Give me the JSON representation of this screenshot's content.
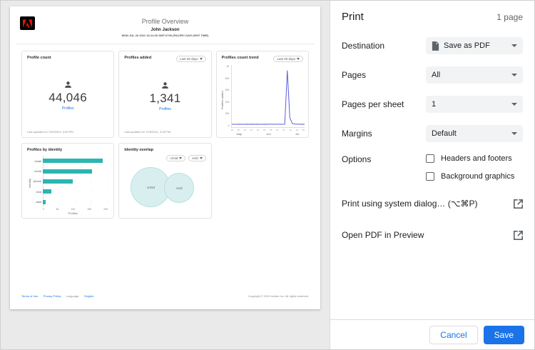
{
  "preview": {
    "header": {
      "title": "Profile Overview",
      "user": "John Jackson",
      "datetime": "MON JUL 26 2021 16:11:26 GMT-0700 (PACIFIC DAYLIGHT TIME)"
    },
    "cards": {
      "profile_count": {
        "title": "Profile count",
        "value": "44,046",
        "link": "Profiles",
        "updated": "Last updated on 7/25/2021, 3:00 PM"
      },
      "profiles_added": {
        "title": "Profiles added",
        "filter": "Last 30 days",
        "value": "1,341",
        "link": "Profiles",
        "updated": "Last updated on 7/25/2021, 3:00 PM"
      },
      "count_trend": {
        "title": "Profiles count trend",
        "filter": "Last 30 days"
      },
      "by_identity": {
        "title": "Profiles by identity"
      },
      "identity_overlap": {
        "title": "Identity overlap",
        "select_left": "crmid",
        "select_right": "ecid"
      }
    },
    "footer": {
      "links": [
        "Terms of Use",
        "Privacy Policy"
      ],
      "language_label": "Language:",
      "language_value": "English",
      "copyright": "Copyright © 2021 Adobe Inc.  All rights reserved."
    }
  },
  "chart_data": [
    {
      "type": "line",
      "title": "Profiles count trend",
      "ylabel": "Profiles added",
      "xlabel": "",
      "ylim": [
        0,
        1000
      ],
      "y_ticks": [
        "1K",
        "800",
        "600",
        "400",
        "200",
        "0"
      ],
      "x_tick_labels": [
        "19",
        "25",
        "01",
        "07",
        "13",
        "19",
        "25",
        "01",
        "07",
        "13",
        "19",
        "25"
      ],
      "month_labels": [
        "May",
        "Jun",
        "Jul"
      ],
      "values": [
        4,
        5,
        4,
        6,
        5,
        4,
        6,
        5,
        7,
        5,
        6,
        4,
        5,
        6,
        5,
        7,
        6,
        5,
        6,
        7,
        5,
        6,
        950,
        120,
        15,
        8,
        6,
        5,
        6,
        5
      ],
      "color": "#5c5ce0",
      "legend": "none",
      "grid": false
    },
    {
      "type": "bar",
      "orientation": "horizontal",
      "title": "Profiles by identity",
      "categories": [
        "email",
        "crmid",
        "phone",
        "ecid",
        "aaid"
      ],
      "values": [
        18500,
        15200,
        9300,
        2600,
        900
      ],
      "xlabel": "Profiles",
      "ylabel": "Identity",
      "xlim": [
        0,
        20000
      ],
      "x_ticks": [
        "0",
        "5K",
        "10K",
        "15K",
        "20K"
      ],
      "color": "#2cb5b2",
      "legend": "none",
      "grid": true
    },
    {
      "type": "venn",
      "title": "Identity overlap",
      "sets": [
        {
          "label": "crmid",
          "size": "large"
        },
        {
          "label": "ecid",
          "size": "medium"
        }
      ],
      "color": "#d9efef"
    }
  ],
  "print": {
    "title": "Print",
    "pages_badge": "1 page",
    "rows": [
      {
        "label": "Destination",
        "value": "Save as PDF"
      },
      {
        "label": "Pages",
        "value": "All"
      },
      {
        "label": "Pages per sheet",
        "value": "1"
      },
      {
        "label": "Margins",
        "value": "Default"
      }
    ],
    "options": {
      "label": "Options",
      "items": [
        {
          "label": "Headers and footers",
          "checked": false
        },
        {
          "label": "Background graphics",
          "checked": false
        }
      ]
    },
    "links": [
      {
        "label": "Print using system dialog… (⌥⌘P)"
      },
      {
        "label": "Open PDF in Preview"
      }
    ],
    "buttons": {
      "cancel": "Cancel",
      "save": "Save"
    },
    "accent_color": "#1a73e8"
  }
}
